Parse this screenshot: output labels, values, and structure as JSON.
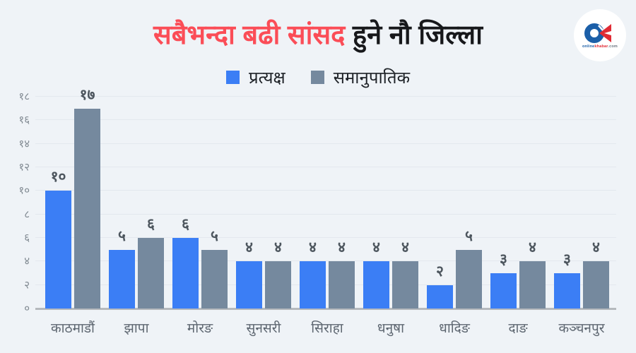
{
  "page": {
    "background": "#eff3f7"
  },
  "title": {
    "highlight": "सबैभन्दा बढी सांसद",
    "rest": " हुने नौ जिल्ला",
    "highlight_color": "#fb4d57",
    "rest_color": "#17181b"
  },
  "logo": {
    "caption_online": "online",
    "caption_khabar": "khabar",
    "caption_tld": ".com",
    "o_color": "#1b5fa8",
    "k_color": "#e02b35"
  },
  "legend": {
    "items": [
      {
        "label": "प्रत्यक्ष",
        "color": "#3b7ef5"
      },
      {
        "label": "समानुपातिक",
        "color": "#75899e"
      }
    ]
  },
  "chart_data": {
    "type": "bar",
    "title": "सबैभन्दा बढी सांसद हुने नौ जिल्ला",
    "categories": [
      "काठमाडौं",
      "झापा",
      "मोरङ",
      "सुनसरी",
      "सिराहा",
      "धनुषा",
      "धादिङ",
      "दाङ",
      "कञ्चनपुर"
    ],
    "series": [
      {
        "name": "प्रत्यक्ष",
        "color": "#3b7ef5",
        "values": [
          10,
          5,
          6,
          4,
          4,
          4,
          2,
          3,
          3
        ],
        "value_labels": [
          "१०",
          "५",
          "६",
          "४",
          "४",
          "४",
          "२",
          "३",
          "३"
        ]
      },
      {
        "name": "समानुपातिक",
        "color": "#75899e",
        "values": [
          17,
          6,
          5,
          4,
          4,
          4,
          5,
          4,
          4
        ],
        "value_labels": [
          "१७",
          "६",
          "५",
          "४",
          "४",
          "४",
          "५",
          "४",
          "४"
        ]
      }
    ],
    "ylim": [
      0,
      18
    ],
    "y_ticks": [
      {
        "value": 0,
        "label": "०"
      },
      {
        "value": 2,
        "label": "२"
      },
      {
        "value": 4,
        "label": "४"
      },
      {
        "value": 6,
        "label": "६"
      },
      {
        "value": 8,
        "label": "८"
      },
      {
        "value": 10,
        "label": "१०"
      },
      {
        "value": 12,
        "label": "१२"
      },
      {
        "value": 14,
        "label": "१४"
      },
      {
        "value": 16,
        "label": "१६"
      },
      {
        "value": 18,
        "label": "१८"
      }
    ],
    "grid": "horizontal",
    "legend_position": "top"
  }
}
